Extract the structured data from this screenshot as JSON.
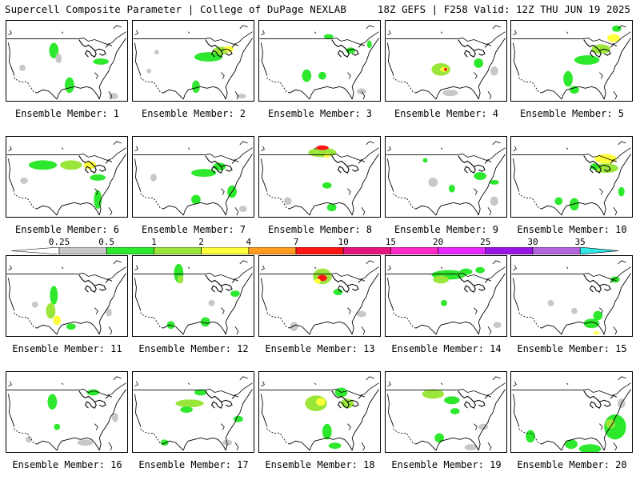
{
  "header": {
    "title_left": "Supercell Composite Parameter | College of DuPage NEXLAB",
    "title_right": "18Z GEFS | F258 Valid: 12Z THU JUN 19 2025"
  },
  "colorbar": {
    "labels": [
      "0.25",
      "0.5",
      "1",
      "2",
      "4",
      "7",
      "10",
      "15",
      "20",
      "25",
      "30",
      "35"
    ],
    "colors": [
      "#c8c8c8",
      "#2ee82e",
      "#9be63a",
      "#ffff3c",
      "#ff9b1e",
      "#ff1414",
      "#e6147d",
      "#ff28c8",
      "#e628ff",
      "#9b14e6",
      "#b464dc",
      "#32e6e6"
    ]
  },
  "members": [
    {
      "caption": "Ensemble Member: 1"
    },
    {
      "caption": "Ensemble Member: 2"
    },
    {
      "caption": "Ensemble Member: 3"
    },
    {
      "caption": "Ensemble Member: 4"
    },
    {
      "caption": "Ensemble Member: 5"
    },
    {
      "caption": "Ensemble Member: 6"
    },
    {
      "caption": "Ensemble Member: 7"
    },
    {
      "caption": "Ensemble Member: 8"
    },
    {
      "caption": "Ensemble Member: 9"
    },
    {
      "caption": "Ensemble Member: 10"
    },
    {
      "caption": "Ensemble Member: 11"
    },
    {
      "caption": "Ensemble Member: 12"
    },
    {
      "caption": "Ensemble Member: 13"
    },
    {
      "caption": "Ensemble Member: 14"
    },
    {
      "caption": "Ensemble Member: 15"
    },
    {
      "caption": "Ensemble Member: 16"
    },
    {
      "caption": "Ensemble Member: 17"
    },
    {
      "caption": "Ensemble Member: 18"
    },
    {
      "caption": "Ensemble Member: 19"
    },
    {
      "caption": "Ensemble Member: 20"
    }
  ]
}
